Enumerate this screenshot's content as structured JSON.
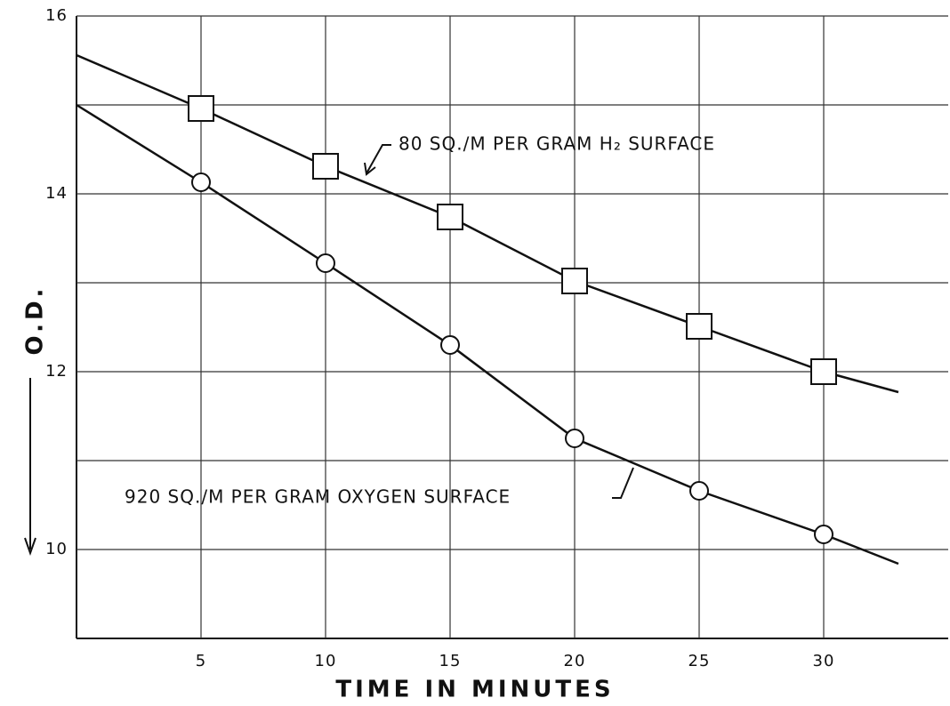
{
  "chart_data": {
    "type": "line",
    "xlabel": "TIME IN MINUTES",
    "ylabel": "O.D.",
    "xlim": [
      0,
      35
    ],
    "ylim": [
      9,
      16
    ],
    "xticks": [
      5,
      10,
      15,
      20,
      25,
      30
    ],
    "yticks": [
      10,
      12,
      14,
      16
    ],
    "ygrid": [
      11,
      13,
      15
    ],
    "grid": true,
    "series": [
      {
        "name": "80 SQ./M PER GRAM H₂ SURFACE",
        "marker": "square",
        "color": "#111",
        "x": [
          5,
          10,
          15,
          20,
          25,
          30
        ],
        "values": [
          14.96,
          14.31,
          13.74,
          13.02,
          12.51,
          12.0
        ],
        "line_start": {
          "x": 0,
          "y": 15.56
        },
        "line_end": {
          "x": 33,
          "y": 11.77
        }
      },
      {
        "name": "920 SQ./M PER GRAM OXYGEN SURFACE",
        "marker": "circle",
        "color": "#111",
        "x": [
          5,
          10,
          15,
          20,
          25,
          30
        ],
        "values": [
          14.13,
          13.22,
          12.3,
          11.25,
          10.66,
          10.17
        ],
        "line_start": {
          "x": 0,
          "y": 15.0
        },
        "line_end": {
          "x": 33,
          "y": 9.84
        }
      }
    ]
  }
}
